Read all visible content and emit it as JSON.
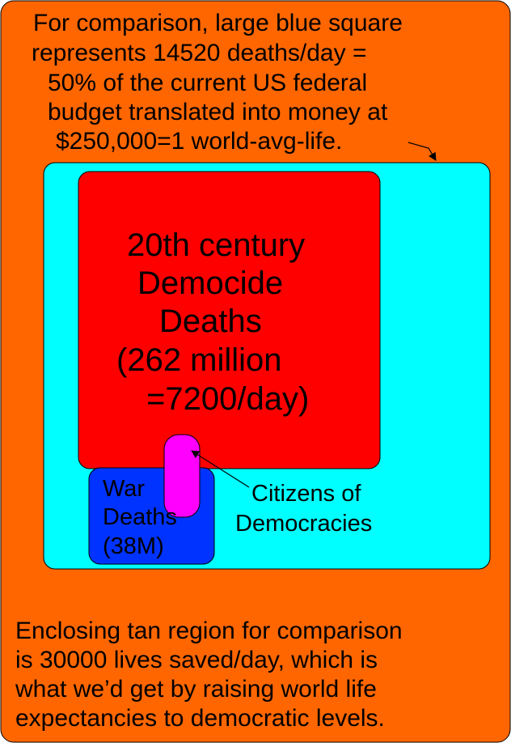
{
  "intro_lines": [
    "For comparison, large blue square",
    "represents 14520 deaths/day =",
    "50% of the current US federal",
    "budget translated into money at",
    "$250,000=1 world-avg-life."
  ],
  "democide_lines": [
    "20th century",
    "Democide",
    "Deaths",
    "(262 million",
    "=7200/day)"
  ],
  "war_lines": [
    "War",
    "Deaths",
    "(38M)"
  ],
  "citizens_lines": [
    "Citizens of",
    "Democracies"
  ],
  "bottom_lines": [
    "Enclosing tan region for comparison",
    "is 30000 lives saved/day, which is",
    "what we’d get by raising world life",
    "expectancies to democratic levels."
  ],
  "colors": {
    "outer_region": "#ff6600",
    "budget_square": "#00ffff",
    "democide_square": "#ff0000",
    "war_square": "#0033ff",
    "citizens_overlap": "#ff00ff",
    "text": "#000000"
  }
}
